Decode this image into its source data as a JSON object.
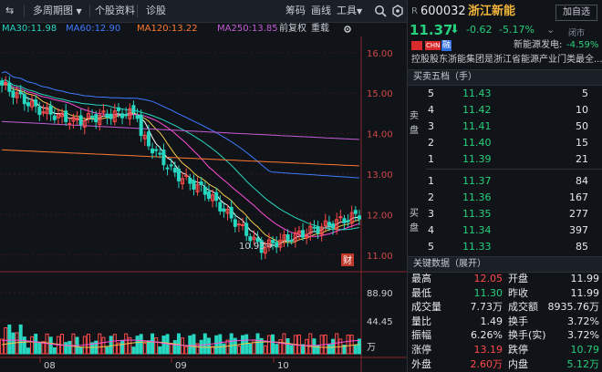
{
  "toolbar": {
    "period": "多周期图",
    "period_arrow": "▼",
    "profile": "个股资料",
    "diagnose": "诊股",
    "chips": "筹码",
    "draw": "画线",
    "tools": "工具",
    "tools_arrow": "▼",
    "arrow": "⇆"
  },
  "ma": {
    "ma30": "MA30:11.98",
    "ma60": "MA60:12.90",
    "ma120": "MA120:13.22",
    "ma250": "MA250:13.85",
    "adjust": "前复权",
    "overlay": "重载",
    "colors": {
      "ma30": "#27d7c0",
      "ma60": "#3f7bff",
      "ma120": "#ff7a2f",
      "ma250": "#c45dd6"
    }
  },
  "chart": {
    "price_ticks": [
      "16.00",
      "15.00",
      "14.00",
      "13.00",
      "12.00",
      "11.00"
    ],
    "low_label": "10.93→",
    "cai_badge": "财",
    "vol_ticks": [
      "88.90",
      "44.45",
      "万"
    ],
    "months": [
      "08",
      "09",
      "10"
    ]
  },
  "quote": {
    "r_badge": "R",
    "code": "600032",
    "name": "浙江新能",
    "watch_button": "加自选",
    "price": "11.37",
    "arrow": "⬇",
    "change": "-0.62",
    "change_pct": "-5.17%",
    "more_arrow": "⌄",
    "status": "闭市",
    "flag_badge": "CHN",
    "rong_badge": "融",
    "sector": "新能源发电:",
    "sector_pct": "-4.59%",
    "summary": "控股股东浙能集团是浙江省能源产业门类最全..."
  },
  "orderbook": {
    "title": "买卖五档（手）",
    "sell_side": "卖盘",
    "buy_side": "买盘",
    "sells": [
      {
        "level": "5",
        "price": "11.43",
        "volume": "5"
      },
      {
        "level": "4",
        "price": "11.42",
        "volume": "10"
      },
      {
        "level": "3",
        "price": "11.41",
        "volume": "50"
      },
      {
        "level": "2",
        "price": "11.40",
        "volume": "15"
      },
      {
        "level": "1",
        "price": "11.39",
        "volume": "21"
      }
    ],
    "buys": [
      {
        "level": "1",
        "price": "11.37",
        "volume": "84"
      },
      {
        "level": "2",
        "price": "11.36",
        "volume": "167"
      },
      {
        "level": "3",
        "price": "11.35",
        "volume": "277"
      },
      {
        "level": "4",
        "price": "11.34",
        "volume": "397"
      },
      {
        "level": "5",
        "price": "11.33",
        "volume": "85"
      }
    ]
  },
  "stats": {
    "title": "关键数据（展开）",
    "rows": [
      {
        "l1": "最高",
        "v1": "12.05",
        "c1": "red",
        "l2": "开盘",
        "v2": "11.99",
        "c2": "white"
      },
      {
        "l1": "最低",
        "v1": "11.30",
        "c1": "green",
        "l2": "昨收",
        "v2": "11.99",
        "c2": "white"
      },
      {
        "l1": "成交量",
        "v1": "7.73万",
        "c1": "white",
        "l2": "成交额",
        "v2": "8935.76万",
        "c2": "white"
      },
      {
        "l1": "量比",
        "v1": "1.49",
        "c1": "white",
        "l2": "换手",
        "v2": "3.72%",
        "c2": "white"
      },
      {
        "l1": "振幅",
        "v1": "6.26%",
        "c1": "white",
        "l2": "换手(实)",
        "v2": "3.72%",
        "c2": "white"
      },
      {
        "l1": "涨停",
        "v1": "13.19",
        "c1": "red",
        "l2": "跌停",
        "v2": "10.79",
        "c2": "green"
      },
      {
        "l1": "外盘",
        "v1": "2.60万",
        "c1": "red",
        "l2": "内盘",
        "v2": "5.12万",
        "c2": "green"
      }
    ]
  }
}
